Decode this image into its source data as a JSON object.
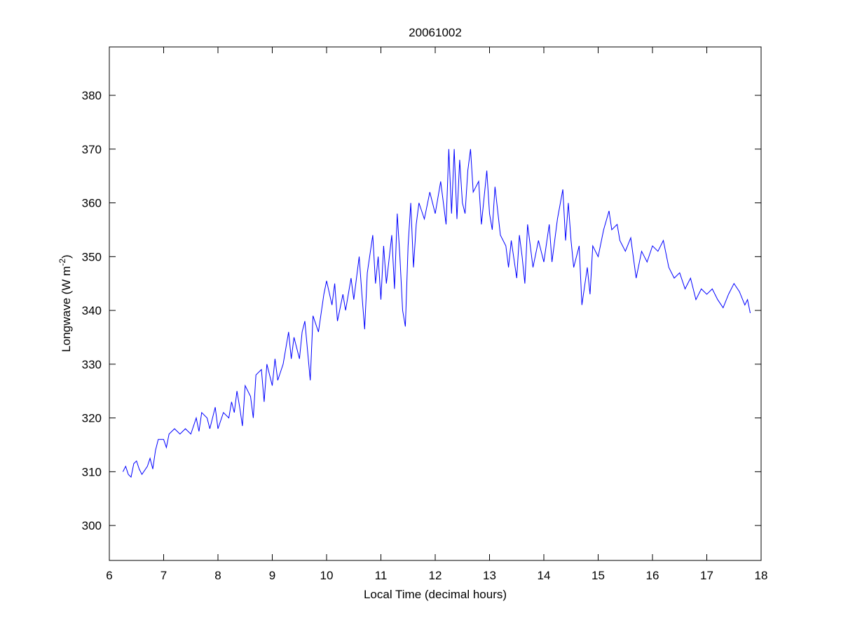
{
  "chart_data": {
    "type": "line",
    "title": "20061002",
    "xlabel": "Local Time (decimal hours)",
    "ylabel": "Longwave (W m",
    "ylabel_exponent": "-2",
    "ylabel_close": ")",
    "xlim": [
      6,
      18
    ],
    "ylim": [
      293.5,
      389
    ],
    "xticks": [
      6,
      7,
      8,
      9,
      10,
      11,
      12,
      13,
      14,
      15,
      16,
      17,
      18
    ],
    "yticks": [
      300,
      310,
      320,
      330,
      340,
      350,
      360,
      370,
      380
    ],
    "grid": false,
    "series": [
      {
        "name": "Longwave",
        "color": "#0000ff",
        "x": [
          6.25,
          6.3,
          6.35,
          6.4,
          6.45,
          6.5,
          6.55,
          6.6,
          6.7,
          6.75,
          6.8,
          6.85,
          6.9,
          7.0,
          7.05,
          7.1,
          7.2,
          7.3,
          7.4,
          7.5,
          7.6,
          7.65,
          7.7,
          7.8,
          7.85,
          7.95,
          8.0,
          8.1,
          8.2,
          8.25,
          8.3,
          8.35,
          8.4,
          8.45,
          8.5,
          8.6,
          8.65,
          8.7,
          8.8,
          8.85,
          8.9,
          9.0,
          9.05,
          9.1,
          9.2,
          9.3,
          9.35,
          9.4,
          9.5,
          9.55,
          9.6,
          9.7,
          9.75,
          9.85,
          9.95,
          10.0,
          10.1,
          10.15,
          10.2,
          10.3,
          10.35,
          10.45,
          10.5,
          10.6,
          10.65,
          10.7,
          10.75,
          10.85,
          10.9,
          10.95,
          11.0,
          11.05,
          11.1,
          11.2,
          11.25,
          11.3,
          11.35,
          11.4,
          11.45,
          11.5,
          11.55,
          11.6,
          11.65,
          11.7,
          11.8,
          11.9,
          12.0,
          12.1,
          12.2,
          12.25,
          12.3,
          12.35,
          12.4,
          12.45,
          12.5,
          12.55,
          12.6,
          12.65,
          12.7,
          12.8,
          12.85,
          12.95,
          13.0,
          13.05,
          13.1,
          13.2,
          13.3,
          13.35,
          13.4,
          13.5,
          13.55,
          13.6,
          13.65,
          13.7,
          13.8,
          13.9,
          14.0,
          14.1,
          14.15,
          14.25,
          14.35,
          14.4,
          14.45,
          14.5,
          14.55,
          14.65,
          14.7,
          14.8,
          14.85,
          14.9,
          15.0,
          15.1,
          15.2,
          15.25,
          15.35,
          15.4,
          15.5,
          15.6,
          15.7,
          15.8,
          15.9,
          16.0,
          16.1,
          16.2,
          16.3,
          16.4,
          16.5,
          16.6,
          16.7,
          16.8,
          16.9,
          17.0,
          17.1,
          17.2,
          17.3,
          17.4,
          17.5,
          17.6,
          17.7,
          17.75,
          17.8
        ],
        "y": [
          310,
          311,
          309.5,
          309,
          311.5,
          312,
          310.5,
          309.5,
          311,
          312.5,
          310.5,
          314,
          316,
          316,
          314.5,
          317,
          318,
          317,
          318,
          317,
          320,
          317.5,
          321,
          320,
          318,
          322,
          318,
          321,
          320,
          323,
          321,
          325,
          322,
          318.5,
          326,
          324,
          320,
          328,
          329,
          323,
          330,
          326,
          331,
          327,
          330,
          336,
          331,
          335,
          331,
          336,
          338,
          327,
          339,
          336,
          343,
          345.5,
          341,
          345,
          338,
          343,
          340,
          346,
          342,
          350,
          343,
          336.5,
          347,
          354,
          345,
          350,
          342,
          352,
          345,
          354,
          344,
          358,
          350,
          340,
          337,
          352,
          360,
          348,
          356,
          360,
          357,
          362,
          358,
          364,
          356,
          370,
          358,
          370,
          357,
          368,
          360,
          358,
          366,
          370,
          362,
          364,
          356,
          366,
          358,
          355,
          363,
          354,
          352,
          348,
          353,
          346,
          354,
          350,
          345,
          356,
          348,
          353,
          349,
          356,
          349,
          357,
          362.5,
          353,
          360,
          353,
          348,
          352,
          341,
          348,
          343,
          352,
          350,
          355,
          358.5,
          355,
          356,
          353,
          351,
          353.5,
          346,
          351,
          349,
          352,
          351,
          353,
          348,
          346,
          347,
          344,
          346,
          342,
          344,
          343,
          344,
          342,
          340.5,
          343,
          345,
          343.5,
          341,
          342,
          339.5
        ]
      }
    ]
  }
}
